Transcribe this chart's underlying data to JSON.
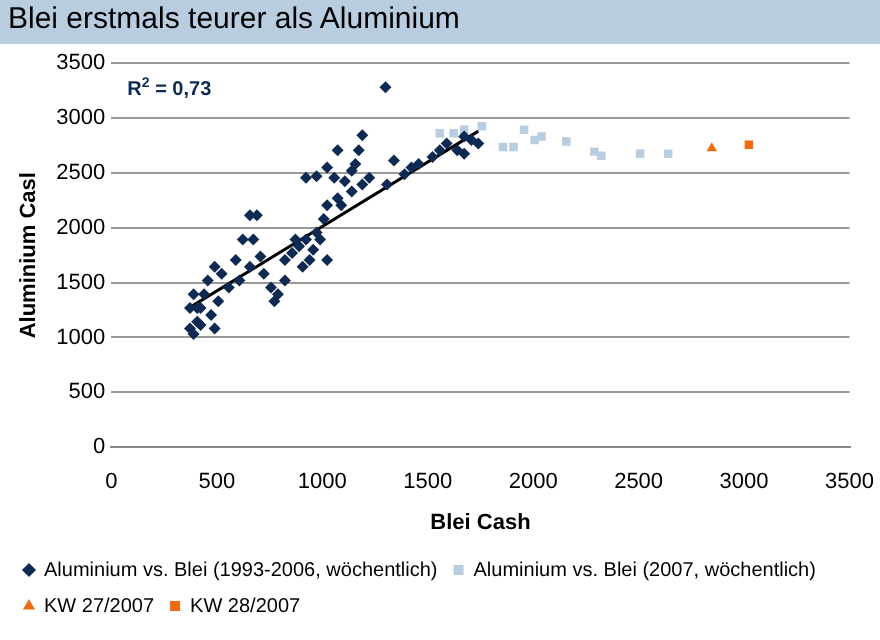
{
  "chart_data": {
    "type": "scatter",
    "title": "Blei erstmals teurer als Aluminium",
    "xlabel": "Blei Cash",
    "ylabel": "Aluminium Casl",
    "xlim": [
      0,
      3500
    ],
    "xticks": [
      0,
      500,
      1000,
      1500,
      2000,
      2500,
      3000,
      3500
    ],
    "ylim": [
      0,
      3500
    ],
    "yticks": [
      0,
      500,
      1000,
      1500,
      2000,
      2500,
      3000,
      3500
    ],
    "grid": "y",
    "legend": "bottom",
    "annotations": [
      "R$^{2}$ = 0,73"
    ],
    "series": [
      {
        "name": "Aluminium vs. Blei (1993-2006, wöchentlich)",
        "color": "#0f2a52",
        "marker": "diamond",
        "x": [
          373,
          390,
          407,
          423,
          440,
          457,
          490,
          523,
          557,
          590,
          623,
          657,
          690,
          673,
          723,
          757,
          790,
          823,
          857,
          890,
          923,
          957,
          990,
          1007,
          973,
          923,
          973,
          1023,
          1057,
          1073,
          1107,
          1140,
          1173,
          1190,
          1157,
          1190,
          1223,
          1307,
          1340,
          1390,
          1423,
          1457,
          1523,
          1557,
          1590,
          1640,
          1673,
          1740,
          1707,
          1673,
          390,
          407,
          473,
          507,
          607,
          707,
          773,
          823,
          873,
          940,
          1023,
          907,
          1023,
          1073,
          1090,
          1140,
          373,
          423,
          490,
          657,
          1300
        ],
        "values": [
          1081,
          1031,
          1144,
          1269,
          1394,
          1519,
          1644,
          1581,
          1456,
          1706,
          1894,
          2113,
          2113,
          1894,
          1581,
          1456,
          1394,
          1519,
          1769,
          1831,
          1894,
          1800,
          1894,
          2081,
          1956,
          2456,
          2469,
          2550,
          2456,
          2706,
          2425,
          2331,
          2706,
          2844,
          2581,
          2394,
          2456,
          2394,
          2613,
          2488,
          2550,
          2581,
          2644,
          2706,
          2769,
          2706,
          2675,
          2769,
          2800,
          2831,
          1394,
          1269,
          1206,
          1331,
          1519,
          1738,
          1331,
          1706,
          1894,
          1706,
          1706,
          1644,
          2206,
          2269,
          2206,
          2519,
          1269,
          1113,
          1081,
          1644,
          3280
        ]
      },
      {
        "name": "Aluminium vs. Blei (2007, wöchentlich)",
        "color": "#b8cde0",
        "marker": "square",
        "x": [
          1557,
          1623,
          1673,
          1757,
          1857,
          1907,
          1957,
          2007,
          2040,
          2157,
          2290,
          2323,
          2507,
          2640
        ],
        "values": [
          2862,
          2862,
          2894,
          2925,
          2737,
          2737,
          2894,
          2800,
          2831,
          2787,
          2694,
          2656,
          2675,
          2675
        ]
      },
      {
        "name": "KW 27/2007",
        "color": "#f26a10",
        "marker": "triangle",
        "x": [
          2847
        ],
        "values": [
          2725
        ]
      },
      {
        "name": "KW 28/2007",
        "color": "#f26a10",
        "marker": "square",
        "x": [
          3023
        ],
        "values": [
          2756
        ]
      },
      {
        "type": "line",
        "color": "#000000",
        "marker": "none",
        "x": [
          357,
          1740
        ],
        "values": [
          1256,
          2881
        ]
      }
    ]
  }
}
